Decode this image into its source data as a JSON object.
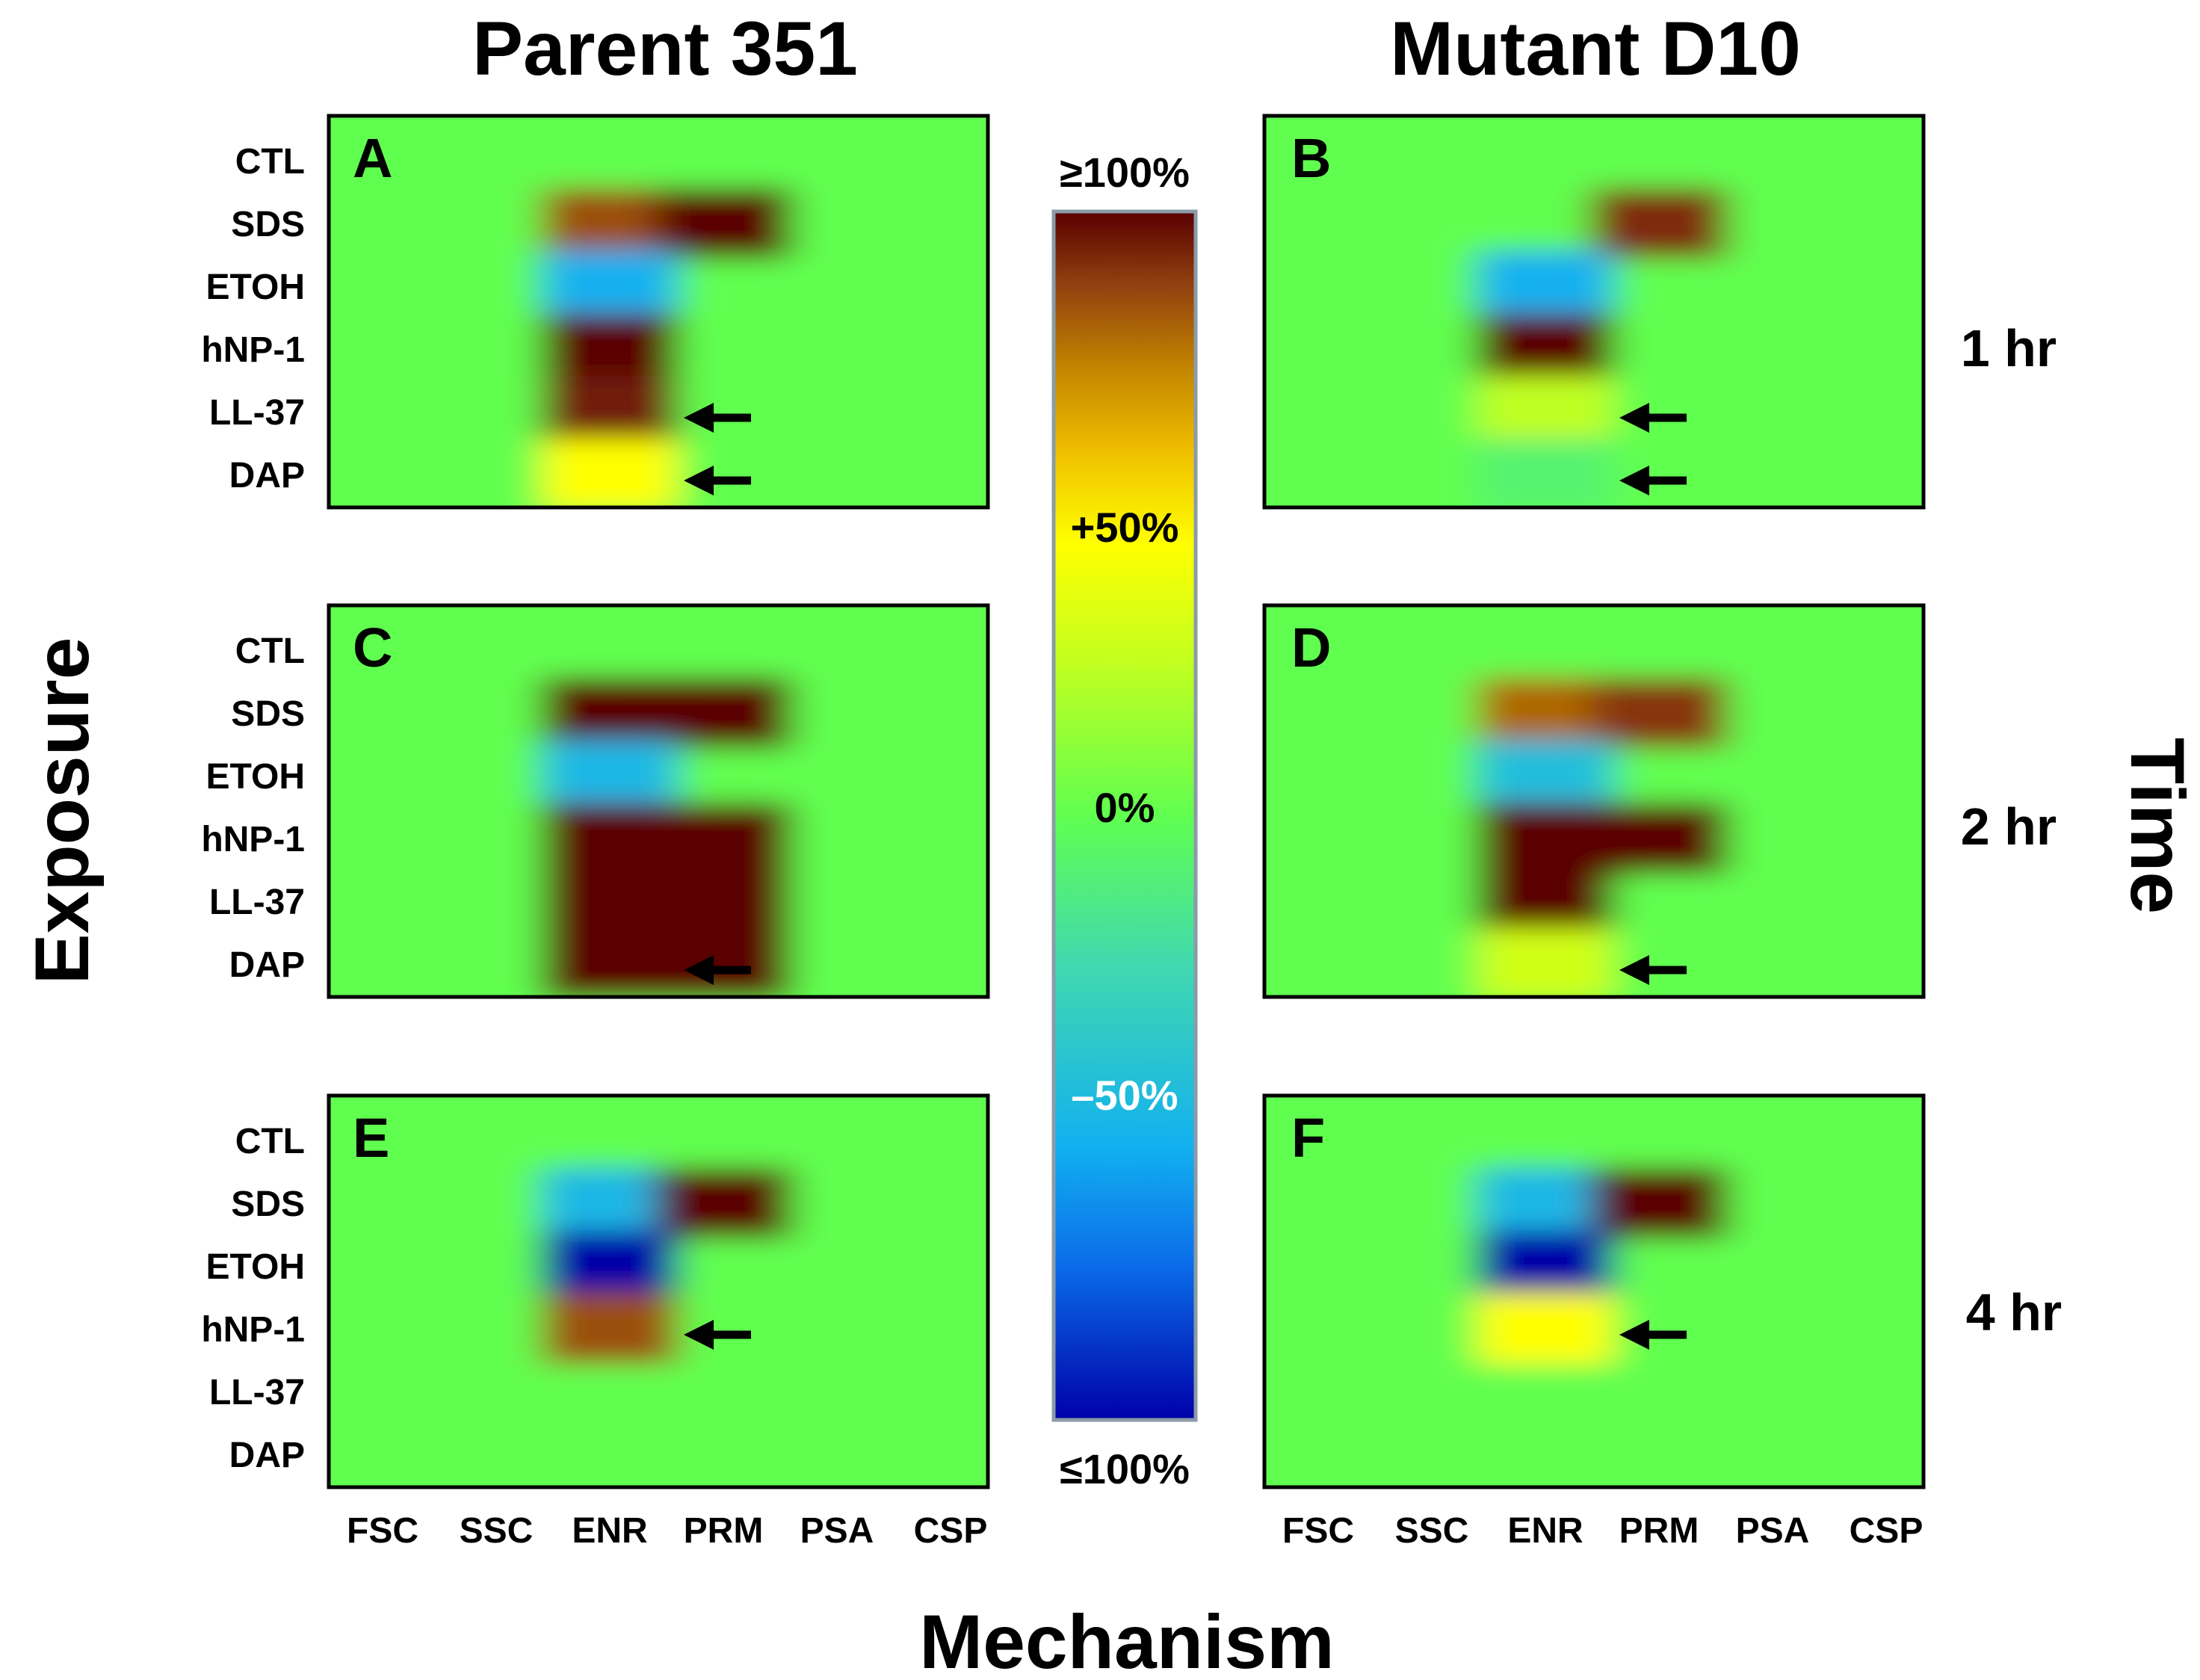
{
  "figure": {
    "column_titles": [
      "Parent 351",
      "Mutant D10"
    ],
    "y_title": "Exposure",
    "x_title": "Mechanism",
    "right_title": "Time",
    "time_labels": [
      "1 hr",
      "2 hr",
      "4 hr"
    ]
  },
  "colorbar": {
    "labels": [
      "≥100%",
      "+50%",
      "0%",
      "–50%",
      "≤100%"
    ],
    "stops": [
      "#0000a8",
      "#0a6ae8",
      "#12b0f0",
      "#40d8b0",
      "#60ff50",
      "#c0ff20",
      "#ffff00",
      "#f0c000",
      "#c08000",
      "#904010",
      "#5a0000"
    ],
    "stop_values": [
      -100,
      -75,
      -55,
      -25,
      0,
      25,
      45,
      60,
      75,
      88,
      100
    ]
  },
  "chart_data": {
    "type": "heatmap",
    "rows": [
      "CTL",
      "SDS",
      "ETOH",
      "hNP-1",
      "LL-37",
      "DAP"
    ],
    "columns": [
      "FSC",
      "SSC",
      "ENR",
      "PRM",
      "PSA",
      "CSP"
    ],
    "value_range": [
      -100,
      100
    ],
    "unit": "%",
    "panels": [
      {
        "id": "A",
        "strain": "Parent 351",
        "time": "1 hr",
        "arrow_rows": [
          "LL-37",
          "DAP"
        ],
        "values": [
          [
            0,
            0,
            0,
            0,
            0,
            0
          ],
          [
            0,
            0,
            85,
            100,
            0,
            0
          ],
          [
            0,
            0,
            -55,
            0,
            0,
            0
          ],
          [
            0,
            0,
            100,
            0,
            0,
            0
          ],
          [
            0,
            0,
            95,
            0,
            0,
            0
          ],
          [
            0,
            0,
            45,
            0,
            0,
            0
          ]
        ]
      },
      {
        "id": "B",
        "strain": "Mutant D10",
        "time": "1 hr",
        "arrow_rows": [
          "LL-37",
          "DAP"
        ],
        "values": [
          [
            0,
            0,
            0,
            0,
            0,
            0
          ],
          [
            0,
            0,
            0,
            92,
            0,
            0
          ],
          [
            0,
            0,
            -55,
            0,
            0,
            0
          ],
          [
            0,
            0,
            100,
            0,
            0,
            0
          ],
          [
            0,
            0,
            25,
            0,
            0,
            0
          ],
          [
            0,
            0,
            -8,
            0,
            0,
            0
          ]
        ]
      },
      {
        "id": "C",
        "strain": "Parent 351",
        "time": "2 hr",
        "arrow_rows": [
          "DAP"
        ],
        "values": [
          [
            0,
            0,
            0,
            0,
            0,
            0
          ],
          [
            0,
            0,
            100,
            100,
            0,
            0
          ],
          [
            0,
            0,
            -50,
            0,
            0,
            0
          ],
          [
            0,
            0,
            100,
            100,
            0,
            0
          ],
          [
            0,
            0,
            100,
            100,
            0,
            0
          ],
          [
            0,
            0,
            100,
            100,
            0,
            0
          ]
        ]
      },
      {
        "id": "D",
        "strain": "Mutant D10",
        "time": "2 hr",
        "arrow_rows": [
          "DAP"
        ],
        "values": [
          [
            0,
            0,
            0,
            0,
            0,
            0
          ],
          [
            0,
            0,
            80,
            90,
            0,
            0
          ],
          [
            0,
            0,
            -45,
            0,
            0,
            0
          ],
          [
            0,
            0,
            100,
            100,
            0,
            0
          ],
          [
            0,
            0,
            100,
            0,
            0,
            0
          ],
          [
            0,
            0,
            30,
            0,
            0,
            0
          ]
        ]
      },
      {
        "id": "E",
        "strain": "Parent 351",
        "time": "4 hr",
        "arrow_rows": [
          "hNP-1"
        ],
        "values": [
          [
            0,
            0,
            0,
            0,
            0,
            0
          ],
          [
            0,
            0,
            -50,
            100,
            0,
            0
          ],
          [
            0,
            0,
            -100,
            0,
            0,
            0
          ],
          [
            0,
            0,
            85,
            0,
            0,
            0
          ],
          [
            0,
            0,
            0,
            0,
            0,
            0
          ],
          [
            0,
            0,
            0,
            0,
            0,
            0
          ]
        ]
      },
      {
        "id": "F",
        "strain": "Mutant D10",
        "time": "4 hr",
        "arrow_rows": [
          "hNP-1"
        ],
        "values": [
          [
            0,
            0,
            0,
            0,
            0,
            0
          ],
          [
            0,
            0,
            -50,
            100,
            0,
            0
          ],
          [
            0,
            0,
            -100,
            0,
            0,
            0
          ],
          [
            0,
            0,
            45,
            0,
            0,
            0
          ],
          [
            0,
            0,
            0,
            0,
            0,
            0
          ],
          [
            0,
            0,
            0,
            0,
            0,
            0
          ]
        ]
      }
    ]
  }
}
